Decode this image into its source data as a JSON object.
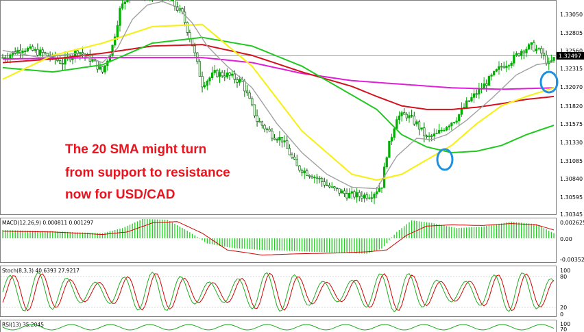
{
  "colors": {
    "bull": "#00b000",
    "bear": "#006600",
    "sma_fast": "#a0a0a0",
    "sma_20": "#f6f01c",
    "sma_50": "#22c822",
    "sma_100": "#d4121e",
    "sma_200": "#e01ed8",
    "macd_hist": "#22cc22",
    "macd_signal": "#d40000",
    "stoch_main": "#20aa20",
    "stoch_signal": "#d40000",
    "annotation": "#e8141e",
    "highlight": "#1e90e0"
  },
  "annotation": {
    "line1": "The 20 SMA might turn",
    "line2": "from support to resistance",
    "line3": "now for USD/CAD"
  },
  "current_price_label": "1.32497",
  "price_axis": [
    "1.33050",
    "1.32805",
    "1.32560",
    "1.32315",
    "1.32070",
    "1.31820",
    "1.31575",
    "1.31330",
    "1.31085",
    "1.30840",
    "1.30595",
    "1.30345"
  ],
  "macd": {
    "label": "MACD(12,26,9) 0.000811 0.001297",
    "axis": [
      "0.002625",
      "0.00",
      "-0.00352"
    ]
  },
  "stoch": {
    "label": "Stoch(8,3,3) 40.6393 27.9217",
    "axis": [
      "100",
      "80",
      "20",
      "0"
    ]
  },
  "rsi": {
    "label": "RSI(13) 35.2045",
    "axis": [
      "100",
      "70"
    ]
  },
  "chart_data": {
    "type": "candlestick",
    "instrument": "USD/CAD",
    "ylim": [
      1.30345,
      1.333
    ],
    "price_anchors": [
      [
        0,
        1.3252
      ],
      [
        8,
        1.3265
      ],
      [
        16,
        1.3258
      ],
      [
        24,
        1.3245
      ],
      [
        30,
        1.3262
      ],
      [
        36,
        1.3248
      ],
      [
        40,
        1.3232
      ],
      [
        44,
        1.3268
      ],
      [
        47,
        1.3318
      ],
      [
        52,
        1.335
      ],
      [
        58,
        1.3335
      ],
      [
        62,
        1.3342
      ],
      [
        68,
        1.3328
      ],
      [
        72,
        1.3312
      ],
      [
        76,
        1.327
      ],
      [
        80,
        1.3215
      ],
      [
        85,
        1.323
      ],
      [
        90,
        1.3228
      ],
      [
        96,
        1.3218
      ],
      [
        102,
        1.3165
      ],
      [
        108,
        1.3145
      ],
      [
        112,
        1.3138
      ],
      [
        118,
        1.31
      ],
      [
        126,
        1.3085
      ],
      [
        132,
        1.307
      ],
      [
        138,
        1.3062
      ],
      [
        144,
        1.306
      ],
      [
        148,
        1.3062
      ],
      [
        152,
        1.3075
      ],
      [
        154,
        1.3118
      ],
      [
        158,
        1.317
      ],
      [
        162,
        1.3172
      ],
      [
        166,
        1.316
      ],
      [
        170,
        1.314
      ],
      [
        174,
        1.3145
      ],
      [
        178,
        1.3158
      ],
      [
        182,
        1.3168
      ],
      [
        186,
        1.3188
      ],
      [
        192,
        1.321
      ],
      [
        196,
        1.3225
      ],
      [
        200,
        1.324
      ],
      [
        204,
        1.3248
      ],
      [
        208,
        1.3262
      ],
      [
        212,
        1.3268
      ],
      [
        216,
        1.3258
      ],
      [
        219,
        1.3242
      ],
      [
        221,
        1.325
      ]
    ],
    "sma_20": [
      [
        0,
        1.3222
      ],
      [
        20,
        1.3255
      ],
      [
        40,
        1.3272
      ],
      [
        60,
        1.3295
      ],
      [
        80,
        1.3298
      ],
      [
        100,
        1.324
      ],
      [
        120,
        1.315
      ],
      [
        140,
        1.309
      ],
      [
        150,
        1.3082
      ],
      [
        160,
        1.309
      ],
      [
        170,
        1.311
      ],
      [
        180,
        1.313
      ],
      [
        190,
        1.316
      ],
      [
        200,
        1.3185
      ],
      [
        210,
        1.3198
      ],
      [
        221,
        1.321
      ]
    ],
    "sma_50": [
      [
        0,
        1.3238
      ],
      [
        20,
        1.3232
      ],
      [
        40,
        1.3242
      ],
      [
        60,
        1.3272
      ],
      [
        80,
        1.328
      ],
      [
        100,
        1.3268
      ],
      [
        120,
        1.324
      ],
      [
        140,
        1.32
      ],
      [
        150,
        1.318
      ],
      [
        160,
        1.3145
      ],
      [
        170,
        1.3128
      ],
      [
        180,
        1.312
      ],
      [
        190,
        1.3122
      ],
      [
        200,
        1.313
      ],
      [
        210,
        1.3145
      ],
      [
        221,
        1.3158
      ]
    ],
    "sma_100": [
      [
        0,
        1.3245
      ],
      [
        20,
        1.325
      ],
      [
        40,
        1.3258
      ],
      [
        60,
        1.3268
      ],
      [
        80,
        1.327
      ],
      [
        100,
        1.3255
      ],
      [
        120,
        1.3232
      ],
      [
        140,
        1.3212
      ],
      [
        150,
        1.3198
      ],
      [
        160,
        1.3185
      ],
      [
        170,
        1.318
      ],
      [
        180,
        1.318
      ],
      [
        190,
        1.3183
      ],
      [
        200,
        1.3188
      ],
      [
        210,
        1.3194
      ],
      [
        221,
        1.3198
      ]
    ],
    "sma_200": [
      [
        0,
        1.325
      ],
      [
        40,
        1.3252
      ],
      [
        80,
        1.3252
      ],
      [
        100,
        1.3245
      ],
      [
        120,
        1.323
      ],
      [
        140,
        1.322
      ],
      [
        160,
        1.3215
      ],
      [
        180,
        1.321
      ],
      [
        200,
        1.3208
      ],
      [
        221,
        1.321
      ]
    ],
    "sma_fast": [
      [
        0,
        1.3262
      ],
      [
        15,
        1.3252
      ],
      [
        30,
        1.3258
      ],
      [
        40,
        1.3245
      ],
      [
        46,
        1.3265
      ],
      [
        52,
        1.3305
      ],
      [
        58,
        1.3325
      ],
      [
        64,
        1.333
      ],
      [
        70,
        1.3322
      ],
      [
        76,
        1.33
      ],
      [
        82,
        1.3268
      ],
      [
        90,
        1.324
      ],
      [
        100,
        1.321
      ],
      [
        110,
        1.316
      ],
      [
        120,
        1.312
      ],
      [
        130,
        1.309
      ],
      [
        140,
        1.3072
      ],
      [
        150,
        1.307
      ],
      [
        158,
        1.3115
      ],
      [
        166,
        1.314
      ],
      [
        172,
        1.3138
      ],
      [
        178,
        1.3145
      ],
      [
        186,
        1.3165
      ],
      [
        196,
        1.3195
      ],
      [
        206,
        1.3228
      ],
      [
        214,
        1.3242
      ],
      [
        221,
        1.3246
      ]
    ],
    "macd_hist": [
      [
        0,
        0.0013
      ],
      [
        20,
        0.0011
      ],
      [
        40,
        0.0008
      ],
      [
        48,
        0.0016
      ],
      [
        56,
        0.003
      ],
      [
        66,
        0.0029
      ],
      [
        74,
        0.0012
      ],
      [
        82,
        -0.0008
      ],
      [
        92,
        -0.0015
      ],
      [
        104,
        -0.0018
      ],
      [
        118,
        -0.002
      ],
      [
        132,
        -0.0022
      ],
      [
        146,
        -0.0024
      ],
      [
        152,
        -0.0016
      ],
      [
        158,
        0.001
      ],
      [
        164,
        0.0028
      ],
      [
        172,
        0.0024
      ],
      [
        182,
        0.0016
      ],
      [
        192,
        0.0018
      ],
      [
        204,
        0.0026
      ],
      [
        214,
        0.0022
      ],
      [
        221,
        0.0008
      ]
    ],
    "macd_signal": [
      [
        0,
        0.0011
      ],
      [
        20,
        0.001
      ],
      [
        40,
        0.0006
      ],
      [
        50,
        0.001
      ],
      [
        60,
        0.0024
      ],
      [
        70,
        0.0026
      ],
      [
        80,
        0.0008
      ],
      [
        90,
        -0.0018
      ],
      [
        104,
        -0.0026
      ],
      [
        118,
        -0.0024
      ],
      [
        132,
        -0.0023
      ],
      [
        146,
        -0.0021
      ],
      [
        154,
        -0.0018
      ],
      [
        162,
        0.0005
      ],
      [
        170,
        0.0019
      ],
      [
        180,
        0.0021
      ],
      [
        192,
        0.002
      ],
      [
        204,
        0.0023
      ],
      [
        214,
        0.0021
      ],
      [
        221,
        0.0013
      ]
    ]
  }
}
